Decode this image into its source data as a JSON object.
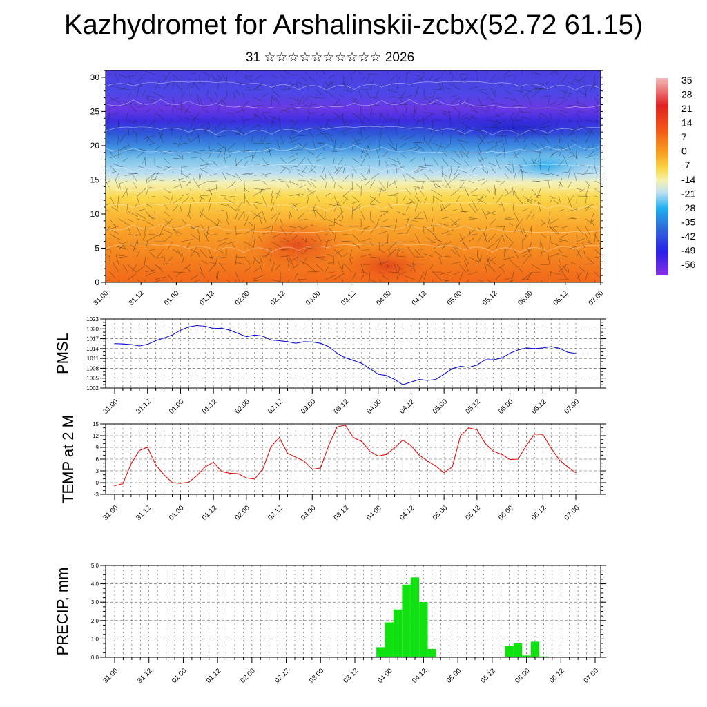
{
  "title": "Kazhydromet for Arshalinskii-zcbx(52.72 61.15)",
  "subtitle": "31 ☆☆☆☆☆☆☆☆☆☆ 2026",
  "colors": {
    "pmsl": "#1010d0",
    "temp": "#e01010",
    "precip": "#10e010"
  },
  "chart_data": [
    {
      "type": "heatmap",
      "name": "cross-section",
      "xticks": [
        "31.00",
        "31.12",
        "01.00",
        "01.12",
        "02.00",
        "02.12",
        "03.00",
        "03.12",
        "04.00",
        "04.12",
        "05.00",
        "05.12",
        "06.00",
        "06.12",
        "07.00"
      ],
      "yticks": [
        "0",
        "5",
        "10",
        "15",
        "20",
        "25",
        "30"
      ],
      "ylim": [
        0,
        31
      ],
      "colorbar": [
        "35",
        "28",
        "21",
        "14",
        "7",
        "0",
        "-7",
        "-14",
        "-21",
        "-28",
        "-35",
        "-42",
        "-49",
        "-56"
      ]
    },
    {
      "type": "line",
      "name": "pmsl",
      "ylabel": "PMSL",
      "xticks": [
        "31.00",
        "31.12",
        "01.00",
        "01.12",
        "02.00",
        "02.12",
        "03.00",
        "03.12",
        "04.00",
        "04.12",
        "05.00",
        "05.12",
        "06.00",
        "06.12",
        "07.00"
      ],
      "yticks": [
        "1002",
        "1005",
        "1008",
        "1011",
        "1014",
        "1017",
        "1020",
        "1023"
      ],
      "ylim": [
        1002,
        1023
      ],
      "values": [
        1015.5,
        1015.4,
        1015.2,
        1014.8,
        1015.3,
        1016.4,
        1017.2,
        1018.1,
        1019.6,
        1020.6,
        1021.0,
        1020.8,
        1020.1,
        1020.2,
        1019.6,
        1018.6,
        1017.6,
        1018.1,
        1017.8,
        1016.6,
        1016.4,
        1016.1,
        1015.6,
        1016.1,
        1016.0,
        1015.6,
        1014.6,
        1012.6,
        1011.2,
        1010.4,
        1009.5,
        1007.9,
        1006.2,
        1005.8,
        1004.6,
        1003.0,
        1003.8,
        1004.6,
        1004.3,
        1004.6,
        1006.2,
        1007.9,
        1008.6,
        1008.3,
        1009.0,
        1010.6,
        1010.6,
        1011.1,
        1012.6,
        1013.6,
        1014.2,
        1014.0,
        1014.2,
        1014.6,
        1014.1,
        1012.9,
        1012.5
      ],
      "grid": true
    },
    {
      "type": "line",
      "name": "temp",
      "ylabel": "TEMP at 2 M",
      "xticks": [
        "31.00",
        "31.12",
        "01.00",
        "01.12",
        "02.00",
        "02.12",
        "03.00",
        "03.12",
        "04.00",
        "04.12",
        "05.00",
        "05.12",
        "06.00",
        "06.12",
        "07.00"
      ],
      "yticks": [
        "-3",
        "0",
        "3",
        "6",
        "9",
        "12",
        "15"
      ],
      "ylim": [
        -3,
        15
      ],
      "values": [
        -0.8,
        -0.3,
        4.8,
        8.2,
        9.0,
        4.5,
        2.0,
        0.0,
        -0.2,
        0.1,
        1.8,
        4.0,
        5.2,
        2.8,
        2.4,
        2.3,
        1.2,
        0.9,
        3.5,
        9.2,
        11.5,
        7.5,
        6.5,
        5.5,
        3.4,
        3.7,
        9.5,
        14.2,
        14.7,
        11.5,
        10.5,
        8.0,
        6.8,
        7.2,
        8.9,
        10.9,
        9.4,
        7.0,
        5.5,
        4.2,
        2.5,
        4.0,
        12.0,
        14.0,
        13.5,
        10.0,
        8.0,
        7.2,
        5.9,
        6.0,
        9.5,
        12.4,
        12.3,
        8.8,
        5.8,
        4.0,
        2.5
      ],
      "grid": true
    },
    {
      "type": "bar",
      "name": "precip",
      "ylabel": "PRECIP, mm",
      "xticks": [
        "31.00",
        "31.12",
        "01.00",
        "01.12",
        "02.00",
        "02.12",
        "03.00",
        "03.12",
        "04.00",
        "04.12",
        "05.00",
        "05.12",
        "06.00",
        "06.12",
        "07.00"
      ],
      "yticks": [
        "0.0",
        "1.0",
        "2.0",
        "3.0",
        "4.0",
        "5.0"
      ],
      "ylim": [
        0,
        5
      ],
      "values": [
        0,
        0,
        0,
        0,
        0,
        0,
        0.02,
        0.02,
        0.02,
        0.01,
        0.01,
        0,
        0,
        0,
        0,
        0,
        0,
        0.01,
        0,
        0,
        0,
        0,
        0,
        0,
        0,
        0,
        0,
        0,
        0,
        0,
        0,
        0.55,
        1.9,
        2.6,
        3.95,
        4.35,
        3.0,
        0.45,
        0,
        0,
        0,
        0,
        0,
        0,
        0,
        0,
        0.6,
        0.75,
        0.1,
        0.85,
        0.05,
        0.01,
        0,
        0,
        0,
        0,
        0
      ],
      "grid": true
    }
  ]
}
